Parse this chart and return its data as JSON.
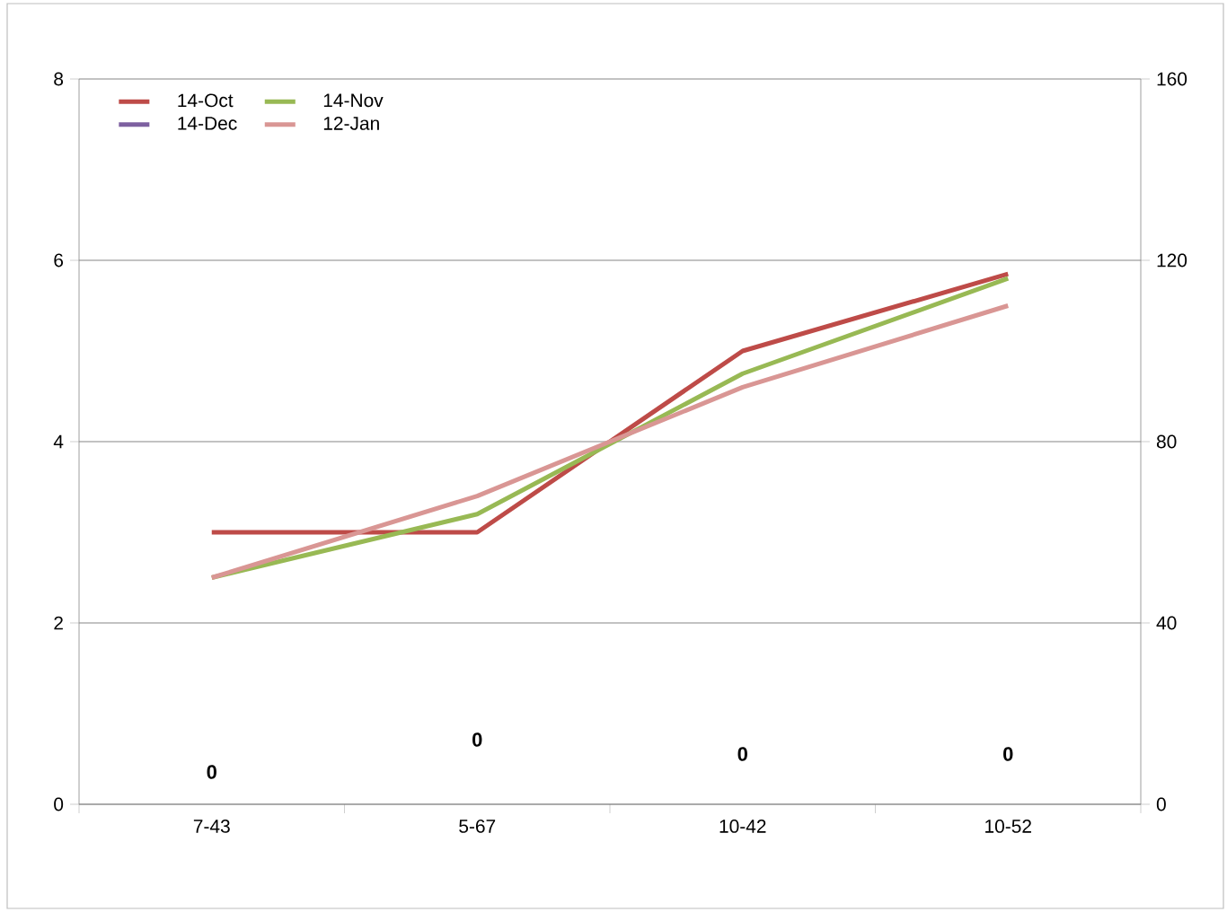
{
  "chart_data": {
    "type": "line",
    "categories": [
      "7-43",
      "5-67",
      "10-42",
      "10-52"
    ],
    "series": [
      {
        "name": "14-Oct",
        "color": "#be4b48",
        "values": [
          3,
          3,
          5,
          5.85
        ]
      },
      {
        "name": "14-Nov",
        "color": "#98b954",
        "values": [
          2.5,
          3.2,
          4.75,
          5.8
        ]
      },
      {
        "name": "14-Dec",
        "color": "#7d60a0",
        "values": [
          null,
          null,
          null,
          null
        ]
      },
      {
        "name": "12-Jan",
        "color": "#d99694",
        "axis": "y2",
        "values": [
          50,
          68,
          92,
          110
        ]
      }
    ],
    "ylim": [
      0,
      8
    ],
    "yticks": [
      0,
      2,
      4,
      6,
      8
    ],
    "y2lim": [
      0,
      160
    ],
    "y2ticks": [
      0,
      40,
      80,
      120,
      160
    ],
    "grid": "y",
    "legend": "top left",
    "marker": "none",
    "line_style": "solid",
    "annotations": [
      "0",
      "0",
      "0",
      "0"
    ]
  }
}
